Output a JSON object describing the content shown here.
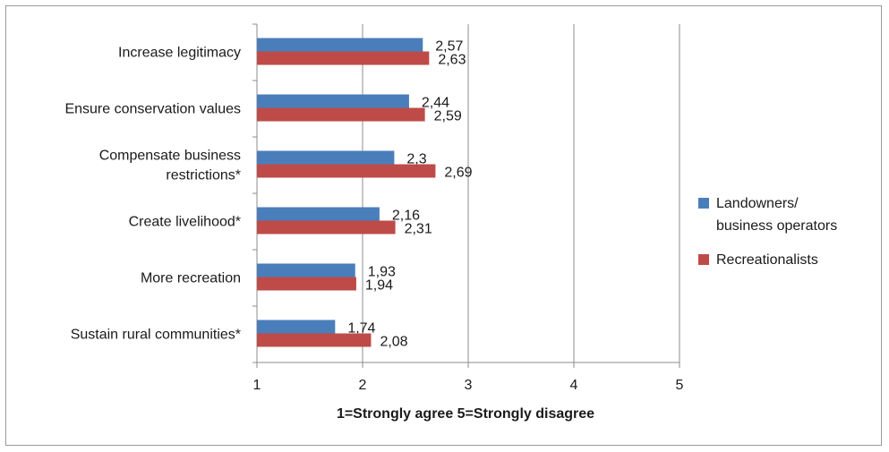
{
  "chart_data": {
    "type": "bar",
    "orientation": "horizontal",
    "categories": [
      "Increase legitimacy",
      "Ensure conservation values",
      [
        "Compensate business",
        "restrictions*"
      ],
      "Create livelihood*",
      "More recreation",
      "Sustain rural communities*"
    ],
    "series": [
      {
        "name": [
          "Landowners/",
          "business operators"
        ],
        "color": "#4a7ebb",
        "values": [
          2.57,
          2.44,
          2.3,
          2.16,
          1.93,
          1.74
        ],
        "labels": [
          "2,57",
          "2,44",
          "2,3",
          "2,16",
          "1,93",
          "1,74"
        ]
      },
      {
        "name": [
          "Recreationalists"
        ],
        "color": "#be4b48",
        "values": [
          2.63,
          2.59,
          2.69,
          2.31,
          1.94,
          2.08
        ],
        "labels": [
          "2,63",
          "2,59",
          "2,69",
          "2,31",
          "1,94",
          "2,08"
        ]
      }
    ],
    "xlim": [
      1,
      5
    ],
    "xticks": [
      "1",
      "2",
      "3",
      "4",
      "5"
    ],
    "xlabel": "1=Strongly agree 5=Strongly disagree",
    "gridlines": "vertical",
    "legend": "right"
  }
}
